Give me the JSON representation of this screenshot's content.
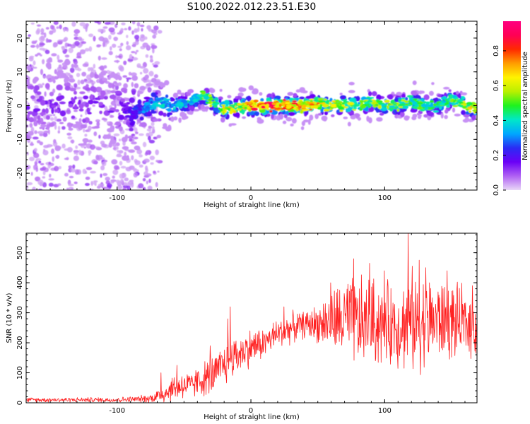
{
  "title": "S100.2022.012.23.51.E30",
  "chart_data": [
    {
      "type": "heatmap",
      "xlabel": "Height of straight line (km)",
      "ylabel": "Frequency (Hz)",
      "xlim": [
        -168,
        169
      ],
      "ylim": [
        -25,
        25
      ],
      "x_ticks": [
        -100,
        0,
        100
      ],
      "y_ticks": [
        -20,
        -10,
        0,
        10,
        20
      ],
      "colorbar": {
        "label": "Normalized spectral amplitude",
        "range": [
          0.0,
          0.97
        ],
        "ticks": [
          0.0,
          0.2,
          0.4,
          0.6,
          0.8
        ],
        "colormap": [
          "#e9d8f7",
          "#b061f3",
          "#6a00f6",
          "#2a2cf4",
          "#00a7ff",
          "#00e8c8",
          "#1ef21e",
          "#b9f000",
          "#fff300",
          "#ff9d00",
          "#ff2a00",
          "#ff0055",
          "#ff0080"
        ]
      },
      "ridge": {
        "x": [
          -168,
          -150,
          -130,
          -110,
          -100,
          -90,
          -80,
          -70,
          -60,
          -50,
          -40,
          -35,
          -30,
          -20,
          -10,
          0,
          10,
          20,
          30,
          40,
          50,
          60,
          70,
          80,
          90,
          100,
          110,
          120,
          130,
          140,
          150,
          160,
          169
        ],
        "frequency": [
          1,
          0.5,
          0,
          0.5,
          -0.5,
          -2,
          -1,
          1,
          0,
          0.5,
          2,
          3,
          1,
          -1,
          -0.5,
          0,
          0,
          0,
          0,
          0,
          0.5,
          0,
          0.5,
          0,
          1,
          0,
          0,
          1,
          0,
          0,
          2,
          0,
          -1
        ],
        "peak_amplitude": [
          0.15,
          0.15,
          0.15,
          0.15,
          0.15,
          0.2,
          0.3,
          0.4,
          0.35,
          0.4,
          0.45,
          0.5,
          0.55,
          0.7,
          0.6,
          0.8,
          0.85,
          0.85,
          0.8,
          0.75,
          0.7,
          0.6,
          0.6,
          0.55,
          0.55,
          0.55,
          0.55,
          0.5,
          0.5,
          0.45,
          0.5,
          0.6,
          0.7
        ]
      }
    },
    {
      "type": "line",
      "xlabel": "Height of straight line (km)",
      "ylabel": "SNR (10 * v/v)",
      "xlim": [
        -168,
        169
      ],
      "ylim": [
        0,
        565
      ],
      "x_ticks": [
        -100,
        0,
        100
      ],
      "y_ticks": [
        0,
        100,
        200,
        300,
        400,
        500
      ],
      "series": [
        {
          "color": "#ff2020",
          "envelope_x": [
            -168,
            -130,
            -100,
            -85,
            -75,
            -65,
            -58,
            -50,
            -45,
            -40,
            -35,
            -30,
            -25,
            -20,
            -15,
            -10,
            0,
            10,
            20,
            30,
            40,
            50,
            60,
            70,
            80,
            90,
            100,
            110,
            120,
            130,
            140,
            150,
            160,
            169
          ],
          "envelope_mean": [
            10,
            10,
            10,
            12,
            15,
            30,
            50,
            60,
            55,
            70,
            80,
            90,
            100,
            130,
            150,
            160,
            185,
            200,
            230,
            250,
            260,
            265,
            270,
            275,
            265,
            270,
            265,
            260,
            265,
            270,
            275,
            270,
            265,
            260
          ],
          "envelope_spread": [
            6,
            6,
            7,
            8,
            12,
            25,
            35,
            40,
            35,
            40,
            45,
            55,
            50,
            60,
            55,
            50,
            50,
            40,
            40,
            40,
            35,
            50,
            80,
            110,
            120,
            120,
            110,
            110,
            130,
            120,
            110,
            100,
            90,
            80
          ],
          "peaks": [
            [
              -67,
              100
            ],
            [
              -55,
              125
            ],
            [
              -30,
              190
            ],
            [
              -17,
              280
            ],
            [
              -15,
              320
            ],
            [
              25,
              320
            ],
            [
              60,
              400
            ],
            [
              77,
              480
            ],
            [
              89,
              465
            ],
            [
              100,
              440
            ],
            [
              118,
              565
            ],
            [
              121,
              455
            ],
            [
              126,
              475
            ],
            [
              131,
              450
            ],
            [
              147,
              440
            ],
            [
              166,
              390
            ]
          ]
        }
      ]
    }
  ]
}
